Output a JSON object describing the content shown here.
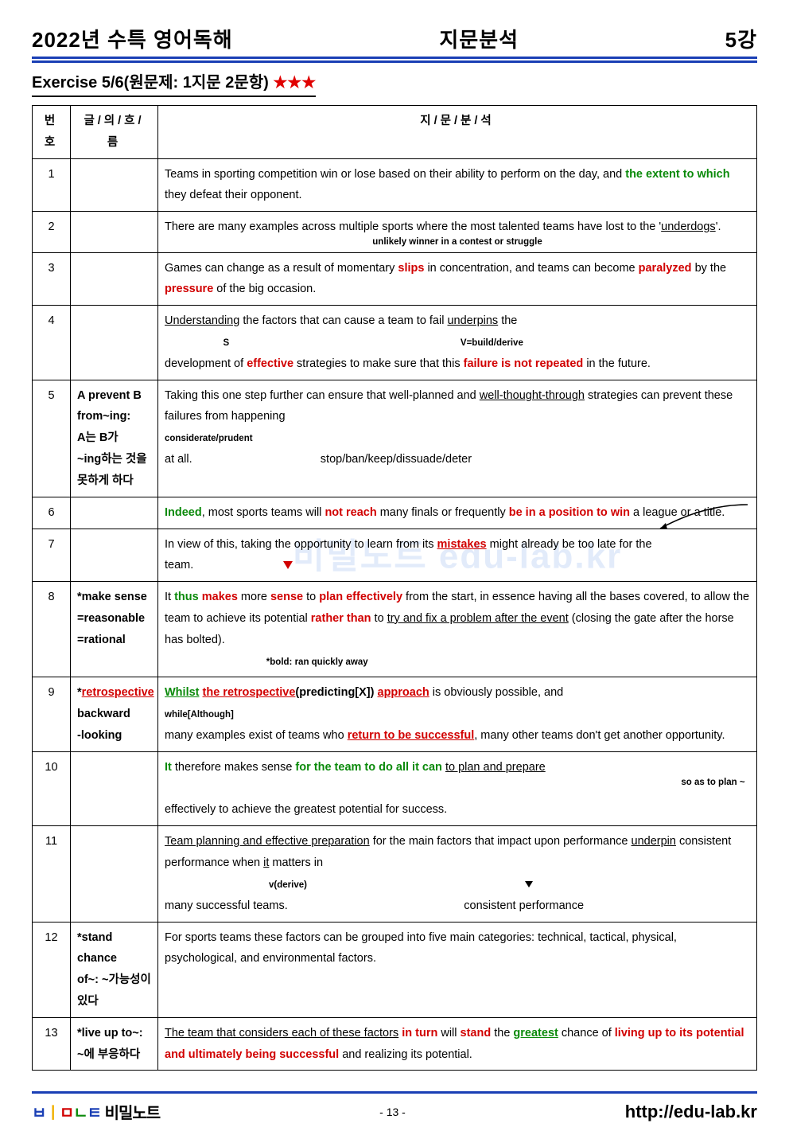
{
  "header": {
    "left": "2022년 수특 영어독해",
    "center": "지문분석",
    "right": "5강"
  },
  "exercise": {
    "label": "Exercise 5/6(원문제: 1지문 2문항)",
    "stars": "★★★"
  },
  "table": {
    "headers": [
      "번호",
      "글/의/흐/름",
      "지/문/분/석"
    ],
    "rows": [
      {
        "num": "1",
        "note": "",
        "body": "Teams in sporting competition win or lose based on their ability to perform on the day, and <span class='b-grn'>the extent to which</span> they defeat their opponent."
      },
      {
        "num": "2",
        "note": "",
        "body": "There are many examples across multiple sports where the most talented teams have lost to the '<span class='u'>underdogs</span>'.<br><span class='anno anno-indent'>unlikely winner in a contest or struggle</span>"
      },
      {
        "num": "3",
        "note": "",
        "body": "Games can change as a result of momentary <span class='b-red'>slips</span> in concentration, and teams can become <span class='b-red'>paralyzed</span> by the <span class='b-red'>pressure</span> of the big occasion."
      },
      {
        "num": "4",
        "note": "",
        "body": "<span class='u'>Understanding</span> the factors that can cause a team to fail <span class='u'>underpins</span> the<br><span class='anno anno-blk'>&nbsp;&nbsp;&nbsp;&nbsp;&nbsp;&nbsp;&nbsp;&nbsp;&nbsp;&nbsp;&nbsp;&nbsp;&nbsp;&nbsp;&nbsp;&nbsp;&nbsp;&nbsp;&nbsp;&nbsp;&nbsp;&nbsp;&nbsp;S&nbsp;&nbsp;&nbsp;&nbsp;&nbsp;&nbsp;&nbsp;&nbsp;&nbsp;&nbsp;&nbsp;&nbsp;&nbsp;&nbsp;&nbsp;&nbsp;&nbsp;&nbsp;&nbsp;&nbsp;&nbsp;&nbsp;&nbsp;&nbsp;&nbsp;&nbsp;&nbsp;&nbsp;&nbsp;&nbsp;&nbsp;&nbsp;&nbsp;&nbsp;&nbsp;&nbsp;&nbsp;&nbsp;&nbsp;&nbsp;&nbsp;&nbsp;&nbsp;&nbsp;&nbsp;&nbsp;&nbsp;&nbsp;&nbsp;&nbsp;&nbsp;&nbsp;&nbsp;&nbsp;&nbsp;&nbsp;&nbsp;&nbsp;&nbsp;&nbsp;&nbsp;&nbsp;&nbsp;&nbsp;&nbsp;&nbsp;&nbsp;&nbsp;&nbsp;&nbsp;&nbsp;&nbsp;&nbsp;&nbsp;&nbsp;&nbsp;&nbsp;&nbsp;&nbsp;&nbsp;&nbsp;&nbsp;&nbsp;&nbsp;&nbsp;&nbsp;&nbsp;&nbsp;&nbsp;&nbsp;&nbsp;V=<b>build/derive</b></span><br>development of <span class='b-red'>effective</span> strategies to make sure that this <span class='b-red'>failure is not repeated</span> in the future."
      },
      {
        "num": "5",
        "note": "A prevent B<br>from~ing:<br>A는 B가<br>~ing하는 것을<br>못하게 하다",
        "body": "Taking this one step further can ensure that well-planned and <span class='u'>well-thought-through</span> strategies can prevent these failures from happening<br><span class='anno anno-blk'>considerate/prudent</span><br>at all.&nbsp;&nbsp;&nbsp;&nbsp;&nbsp;&nbsp;&nbsp;&nbsp;&nbsp;&nbsp;&nbsp;&nbsp;&nbsp;&nbsp;&nbsp;&nbsp;&nbsp;&nbsp;&nbsp;&nbsp;&nbsp;&nbsp;&nbsp;&nbsp;&nbsp;&nbsp;&nbsp;&nbsp;&nbsp;&nbsp;&nbsp;&nbsp;&nbsp;&nbsp;&nbsp;&nbsp;&nbsp;&nbsp;&nbsp;&nbsp;stop/ban/keep/dissuade/deter"
      },
      {
        "num": "6",
        "note": "",
        "body": "<span class='b-grn'>Indeed</span>, most sports teams will <span class='b-red'>not reach</span> many finals or frequently <span class='b-red'>be in a position to win</span> a league or a title.",
        "swoosh": true
      },
      {
        "num": "7",
        "note": "",
        "body": "In view of this, taking the opportunity to learn from its <span class='b-red u-red'>mistakes</span> might already be too late for the team.&nbsp;&nbsp;&nbsp;&nbsp;&nbsp;&nbsp;&nbsp;&nbsp;&nbsp;&nbsp;&nbsp;&nbsp;&nbsp;&nbsp;&nbsp;&nbsp;&nbsp;&nbsp;&nbsp;&nbsp;&nbsp;&nbsp;&nbsp;&nbsp;&nbsp;&nbsp;&nbsp;&nbsp;<span class='red-arrow'></span>",
        "watermark": true
      },
      {
        "num": "8",
        "note": "*make sense<br>=reasonable<br>=rational",
        "body": "It <span class='b-grn'>thus</span> <span class='b-red'>makes</span> more <span class='b-red'>sense</span> to <span class='b-red'>plan effectively</span> from the start, in essence having all the bases covered, to allow the team to achieve its potential <span class='b-red'>rather than</span> to <span class='u'>try and fix a problem after the event</span> (closing the gate after the horse has bolted).<br><span class='anno anno-blk'>&nbsp;&nbsp;&nbsp;&nbsp;&nbsp;&nbsp;&nbsp;&nbsp;&nbsp;&nbsp;&nbsp;&nbsp;&nbsp;&nbsp;&nbsp;&nbsp;&nbsp;&nbsp;&nbsp;&nbsp;&nbsp;&nbsp;&nbsp;&nbsp;&nbsp;&nbsp;&nbsp;&nbsp;&nbsp;&nbsp;&nbsp;&nbsp;&nbsp;&nbsp;&nbsp;&nbsp;&nbsp;&nbsp;&nbsp;&nbsp;*bold: ran quickly away</span>"
      },
      {
        "num": "9",
        "note": "*<span class='u' style='color:#d10000'>retrospective</span><br>backward<br>-looking",
        "body": "<span class='b-grn u'>Whilst</span> <span class='b-red u'>the retrospective</span><b>(predicting[X])</b> <span class='b-red u'>approach</span> is obviously possible, and<br><span class='anno anno-blk'>while[Although]</span><br>many examples exist of teams who <span class='b-red u-red'>return to be successful</span>, many other teams don't get another opportunity."
      },
      {
        "num": "10",
        "note": "",
        "body": "<span class='b-grn'>It</span> therefore makes sense <span class='b-grn'>for the team to do all it can</span> <span class='u'>to plan and prepare</span><br><span class='anno anno-blk' style='float:right'>so as to plan ~&nbsp;&nbsp;</span><br>effectively to achieve the greatest potential for success."
      },
      {
        "num": "11",
        "note": "",
        "body": "<span class='u'>Team planning and effective preparation</span> for the main factors that impact upon performance <span class='u'>underpin</span> consistent performance when <span class='u'>it</span> matters in<br><span class='anno anno-blk'>&nbsp;&nbsp;&nbsp;&nbsp;&nbsp;&nbsp;&nbsp;&nbsp;&nbsp;&nbsp;&nbsp;&nbsp;&nbsp;&nbsp;&nbsp;&nbsp;&nbsp;&nbsp;&nbsp;&nbsp;&nbsp;&nbsp;&nbsp;&nbsp;&nbsp;&nbsp;&nbsp;&nbsp;&nbsp;&nbsp;&nbsp;&nbsp;&nbsp;&nbsp;&nbsp;&nbsp;&nbsp;&nbsp;&nbsp;&nbsp;&nbsp;v(derive)</span>&nbsp;&nbsp;&nbsp;&nbsp;&nbsp;&nbsp;&nbsp;&nbsp;&nbsp;&nbsp;&nbsp;&nbsp;&nbsp;&nbsp;&nbsp;&nbsp;&nbsp;&nbsp;&nbsp;&nbsp;&nbsp;&nbsp;&nbsp;&nbsp;&nbsp;&nbsp;&nbsp;&nbsp;&nbsp;&nbsp;&nbsp;&nbsp;&nbsp;&nbsp;&nbsp;&nbsp;&nbsp;&nbsp;&nbsp;&nbsp;&nbsp;&nbsp;&nbsp;&nbsp;&nbsp;&nbsp;&nbsp;&nbsp;&nbsp;&nbsp;&nbsp;&nbsp;&nbsp;&nbsp;&nbsp;&nbsp;&nbsp;&nbsp;&nbsp;&nbsp;&nbsp;&nbsp;&nbsp;&nbsp;&nbsp;&nbsp;&nbsp;&nbsp;<span class='blk-arrow'></span><br>many successful teams.&nbsp;&nbsp;&nbsp;&nbsp;&nbsp;&nbsp;&nbsp;&nbsp;&nbsp;&nbsp;&nbsp;&nbsp;&nbsp;&nbsp;&nbsp;&nbsp;&nbsp;&nbsp;&nbsp;&nbsp;&nbsp;&nbsp;&nbsp;&nbsp;&nbsp;&nbsp;&nbsp;&nbsp;&nbsp;&nbsp;&nbsp;&nbsp;&nbsp;&nbsp;&nbsp;&nbsp;&nbsp;&nbsp;&nbsp;&nbsp;&nbsp;&nbsp;&nbsp;&nbsp;&nbsp;&nbsp;&nbsp;&nbsp;&nbsp;&nbsp;&nbsp;&nbsp;&nbsp;&nbsp;&nbsp;consistent performance"
      },
      {
        "num": "12",
        "note": "*stand chance<br>of~: ~가능성이<br>있다",
        "body": "For sports teams these factors can be grouped into five main categories: technical, tactical, physical, psychological, and environmental factors."
      },
      {
        "num": "13",
        "note": "*live up to~:<br>~에 부응하다",
        "body": "<span class='u'>The team that considers each of these factors</span> <span class='b-red'>in turn</span> will <span class='b-red'>stand</span> the <span class='b-grn u'>greatest</span> chance of <span class='b-red'>living up to its potential and ultimately being successful</span> and realizing its potential."
      }
    ]
  },
  "footer": {
    "logo_prefix": "비",
    "logo_mid": "ㅣㅁㄴㅌ",
    "logo_suffix": "비밀노트",
    "page": "- 13 -",
    "site": "http://edu-lab.kr"
  },
  "watermark_text": "비밀노트 edu-lab.kr"
}
